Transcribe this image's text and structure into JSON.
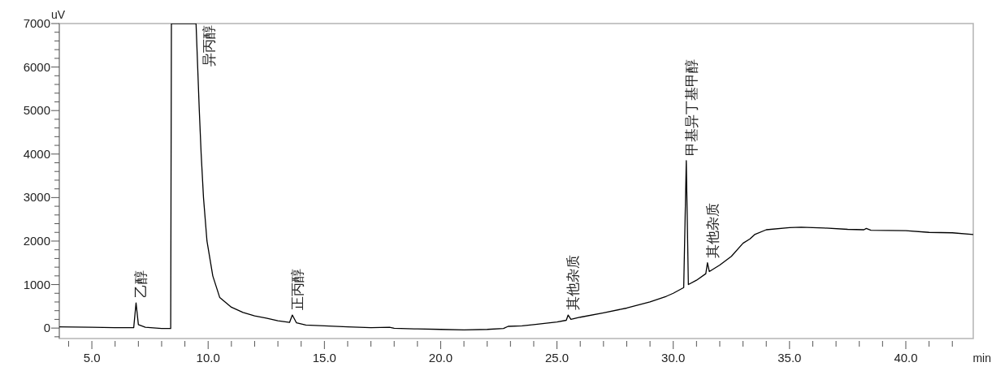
{
  "chart_data": {
    "type": "line",
    "xlabel": "min",
    "ylabel": "uV",
    "color": "#000000",
    "xlim": [
      3.6,
      42.9
    ],
    "ylim": [
      -240,
      7000
    ],
    "xticks": [
      {
        "value": 4,
        "label": null
      },
      {
        "value": 5,
        "label": "5.0"
      },
      {
        "value": 6,
        "label": null
      },
      {
        "value": 7,
        "label": null
      },
      {
        "value": 8,
        "label": null
      },
      {
        "value": 9,
        "label": null
      },
      {
        "value": 10,
        "label": "10.0"
      },
      {
        "value": 11,
        "label": null
      },
      {
        "value": 12,
        "label": null
      },
      {
        "value": 13,
        "label": null
      },
      {
        "value": 14,
        "label": null
      },
      {
        "value": 15,
        "label": "15.0"
      },
      {
        "value": 16,
        "label": null
      },
      {
        "value": 17,
        "label": null
      },
      {
        "value": 18,
        "label": null
      },
      {
        "value": 19,
        "label": null
      },
      {
        "value": 20,
        "label": "20.0"
      },
      {
        "value": 21,
        "label": null
      },
      {
        "value": 22,
        "label": null
      },
      {
        "value": 23,
        "label": null
      },
      {
        "value": 24,
        "label": null
      },
      {
        "value": 25,
        "label": "25.0"
      },
      {
        "value": 26,
        "label": null
      },
      {
        "value": 27,
        "label": null
      },
      {
        "value": 28,
        "label": null
      },
      {
        "value": 29,
        "label": null
      },
      {
        "value": 30,
        "label": "30.0"
      },
      {
        "value": 31,
        "label": null
      },
      {
        "value": 32,
        "label": null
      },
      {
        "value": 33,
        "label": null
      },
      {
        "value": 34,
        "label": null
      },
      {
        "value": 35,
        "label": "35.0"
      },
      {
        "value": 36,
        "label": null
      },
      {
        "value": 37,
        "label": null
      },
      {
        "value": 38,
        "label": null
      },
      {
        "value": 39,
        "label": null
      },
      {
        "value": 40,
        "label": "40.0"
      },
      {
        "value": 41,
        "label": null
      },
      {
        "value": 42,
        "label": null
      }
    ],
    "yticks": [
      {
        "value": -200,
        "label": null
      },
      0,
      {
        "value": 200,
        "label": null
      },
      {
        "value": 400,
        "label": null
      },
      {
        "value": 600,
        "label": null
      },
      {
        "value": 800,
        "label": null
      },
      1000,
      {
        "value": 1200,
        "label": null
      },
      {
        "value": 1400,
        "label": null
      },
      {
        "value": 1600,
        "label": null
      },
      {
        "value": 1800,
        "label": null
      },
      2000,
      {
        "value": 2200,
        "label": null
      },
      {
        "value": 2400,
        "label": null
      },
      {
        "value": 2600,
        "label": null
      },
      {
        "value": 2800,
        "label": null
      },
      3000,
      {
        "value": 3200,
        "label": null
      },
      {
        "value": 3400,
        "label": null
      },
      {
        "value": 3600,
        "label": null
      },
      {
        "value": 3800,
        "label": null
      },
      4000,
      {
        "value": 4200,
        "label": null
      },
      {
        "value": 4400,
        "label": null
      },
      {
        "value": 4600,
        "label": null
      },
      {
        "value": 4800,
        "label": null
      },
      5000,
      {
        "value": 5200,
        "label": null
      },
      {
        "value": 5400,
        "label": null
      },
      {
        "value": 5600,
        "label": null
      },
      {
        "value": 5800,
        "label": null
      },
      6000,
      {
        "value": 6200,
        "label": null
      },
      {
        "value": 6400,
        "label": null
      },
      {
        "value": 6600,
        "label": null
      },
      {
        "value": 6800,
        "label": null
      },
      7000
    ],
    "x": [
      3.6,
      5,
      6,
      6.8,
      6.9,
      7.0,
      7.3,
      8.0,
      8.39,
      8.42,
      9.48,
      9.55,
      9.62,
      9.7,
      9.8,
      9.95,
      10.2,
      10.5,
      11.0,
      11.5,
      12.0,
      12.5,
      13.0,
      13.5,
      13.62,
      13.8,
      14.2,
      15,
      16,
      17,
      17.8,
      18,
      19,
      20,
      21,
      22,
      22.7,
      22.9,
      23.5,
      24,
      25,
      25.4,
      25.48,
      25.6,
      26,
      27,
      28,
      29,
      29.7,
      30,
      30.45,
      30.56,
      30.65,
      31,
      31.4,
      31.47,
      31.55,
      32,
      32.5,
      33,
      33.3,
      33.5,
      34,
      35,
      35.5,
      36.5,
      37.5,
      38.2,
      38.3,
      38.5,
      40,
      41,
      42,
      42.9
    ],
    "values": [
      30,
      20,
      10,
      10,
      580,
      80,
      20,
      -10,
      -10,
      7000,
      7000,
      6000,
      5000,
      4000,
      3000,
      2000,
      1200,
      700,
      480,
      360,
      280,
      230,
      170,
      130,
      300,
      120,
      70,
      50,
      30,
      10,
      20,
      -5,
      -20,
      -30,
      -40,
      -30,
      -10,
      40,
      50,
      80,
      140,
      180,
      300,
      200,
      250,
      350,
      460,
      600,
      730,
      800,
      930,
      3850,
      1000,
      1100,
      1250,
      1500,
      1300,
      1450,
      1650,
      1950,
      2050,
      2150,
      2260,
      2310,
      2320,
      2300,
      2270,
      2260,
      2290,
      2250,
      2240,
      2200,
      2190,
      2150
    ],
    "annotations": [
      {
        "text": "乙醇",
        "x": 6.9,
        "y": 580
      },
      {
        "text": "异丙醇",
        "x": 9.48,
        "y": 7000
      },
      {
        "text": "正丙醇",
        "x": 13.62,
        "y": 300
      },
      {
        "text": "其他杂质",
        "x": 25.48,
        "y": 300
      },
      {
        "text": "甲基异丁基甲醇",
        "x": 30.56,
        "y": 3850
      },
      {
        "text": "其他杂质",
        "x": 31.47,
        "y": 1500
      }
    ]
  }
}
